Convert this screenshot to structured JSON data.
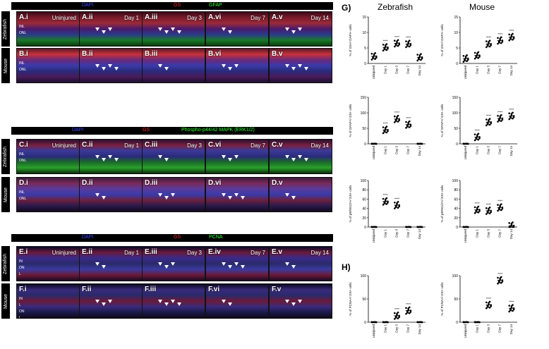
{
  "stain_rows": [
    {
      "markers": [
        {
          "text": "DAPI",
          "color": "#3c4cff"
        },
        {
          "text": "GS",
          "color": "#ff2a2a"
        },
        {
          "text": "GFAP",
          "color": "#2aff2a"
        }
      ],
      "rows": [
        {
          "species": "Zebrafish",
          "letter": "A",
          "layers": [
            "INL",
            "ONL"
          ]
        },
        {
          "species": "Mouse",
          "letter": "B",
          "layers": [
            "INL",
            "ONL"
          ]
        }
      ]
    },
    {
      "markers": [
        {
          "text": "DAPI",
          "color": "#3c4cff"
        },
        {
          "text": "GS",
          "color": "#ff2a2a"
        },
        {
          "text": "Phospho-p44/42 MAPK (ERK1/2)",
          "color": "#2aff2a"
        }
      ],
      "rows": [
        {
          "species": "Zebrafish",
          "letter": "C",
          "layers": [
            "INL",
            "ONL"
          ]
        },
        {
          "species": "Mouse",
          "letter": "D",
          "layers": [
            "INL",
            "ONL"
          ]
        }
      ]
    },
    {
      "markers": [
        {
          "text": "DAPI",
          "color": "#3c4cff"
        },
        {
          "text": "GS",
          "color": "#ff2a2a"
        },
        {
          "text": "PCNA",
          "color": "#2aff2a"
        }
      ],
      "rows": [
        {
          "species": "Zebrafish",
          "letter": "E",
          "layers": [
            "IN",
            "ON",
            "L"
          ]
        },
        {
          "species": "Mouse",
          "letter": "F",
          "layers": [
            "IN",
            "L",
            "ON",
            "L"
          ]
        }
      ]
    }
  ],
  "panel_suffix": [
    "i",
    "ii",
    "iii",
    "vi",
    "v"
  ],
  "panel_suffix_E": [
    "i",
    "ii",
    "iii",
    "iv",
    "v"
  ],
  "timepoints": [
    "Uninjured",
    "Day 1",
    "Day 3",
    "Day 7",
    "Day 14"
  ],
  "section_G": "G)",
  "section_H": "H)",
  "col_titles": [
    "Zebrafish",
    "Mouse"
  ],
  "chart_data": [
    {
      "type": "scatter",
      "species": "Zebrafish",
      "ylabel": "% of GS+/ DAPI+ cells",
      "ylim": [
        0,
        15
      ],
      "yticks": [
        0,
        5,
        10,
        15
      ],
      "categories": [
        "Uninjured",
        "Day 1",
        "Day 3",
        "Day 7",
        "Day 14"
      ],
      "values": [
        2.3,
        5.2,
        6.5,
        6.3,
        2.0
      ],
      "sig": [
        "",
        "****",
        "****",
        "****",
        ""
      ]
    },
    {
      "type": "scatter",
      "species": "Mouse",
      "ylabel": "% of GS+/ DAPI+ cells",
      "ylim": [
        0,
        15
      ],
      "yticks": [
        0,
        5,
        10,
        15
      ],
      "categories": [
        "Uninjured",
        "Day 1",
        "Day 3",
        "Day 7",
        "Day 14"
      ],
      "values": [
        1.6,
        2.6,
        6.3,
        7.4,
        8.5
      ],
      "sig": [
        "",
        "",
        "****",
        "****",
        "****"
      ]
    },
    {
      "type": "scatter",
      "species": "Zebrafish",
      "ylabel": "% of GFAP+/ GS+ cells",
      "ylim": [
        0,
        150
      ],
      "yticks": [
        0,
        50,
        100,
        150
      ],
      "categories": [
        "Uninjured",
        "Day 1",
        "Day 3",
        "Day 7",
        "Day 14"
      ],
      "values": [
        0,
        45,
        80,
        62,
        0
      ],
      "sig": [
        "",
        "****",
        "****",
        "****",
        ""
      ]
    },
    {
      "type": "scatter",
      "species": "Mouse",
      "ylabel": "% of GFAP+/ GS+ cells",
      "ylim": [
        0,
        150
      ],
      "yticks": [
        0,
        50,
        100,
        150
      ],
      "categories": [
        "Uninjured",
        "Day 1",
        "Day 3",
        "Day 7",
        "Day 14"
      ],
      "values": [
        0,
        22,
        70,
        82,
        90
      ],
      "sig": [
        "",
        "****",
        "****",
        "****",
        "****"
      ]
    },
    {
      "type": "scatter",
      "species": "Zebrafish",
      "ylabel": "% of pERK1/2+/ GS+ cells",
      "ylim": [
        0,
        100
      ],
      "yticks": [
        0,
        20,
        40,
        60,
        80,
        100
      ],
      "categories": [
        "Uninjured",
        "Day 1",
        "Day 3",
        "Day 7",
        "Day 14"
      ],
      "values": [
        0,
        55,
        47,
        0,
        0
      ],
      "sig": [
        "",
        "****",
        "****",
        "",
        ""
      ]
    },
    {
      "type": "scatter",
      "species": "Mouse",
      "ylabel": "% of pERK1/2+/ GS+ cells",
      "ylim": [
        0,
        100
      ],
      "yticks": [
        0,
        20,
        40,
        60,
        80,
        100
      ],
      "categories": [
        "Uninjured",
        "Day 1",
        "Day 3",
        "Day 7",
        "Day 14"
      ],
      "values": [
        0,
        37,
        35,
        42,
        3
      ],
      "sig": [
        "",
        "****",
        "****",
        "****",
        ""
      ]
    },
    {
      "type": "scatter",
      "species": "Zebrafish",
      "ylabel": "% of PCNA+/ GS+ cells",
      "ylim": [
        0,
        100
      ],
      "yticks": [
        0,
        50,
        100
      ],
      "categories": [
        "Uninjured",
        "Day 1",
        "Day 3",
        "Day 7",
        "Day 14"
      ],
      "values": [
        0,
        0,
        14,
        25,
        0
      ],
      "sig": [
        "",
        "",
        "****",
        "****",
        ""
      ]
    },
    {
      "type": "scatter",
      "species": "Mouse",
      "ylabel": "% of PCNA+/ GS+ cells",
      "ylim": [
        0,
        100
      ],
      "yticks": [
        0,
        50,
        100
      ],
      "categories": [
        "Uninjured",
        "Day 1",
        "Day 3",
        "Day 7",
        "Day 14"
      ],
      "values": [
        0,
        0,
        37,
        90,
        30
      ],
      "sig": [
        "",
        "",
        "****",
        "****",
        "****"
      ]
    }
  ]
}
